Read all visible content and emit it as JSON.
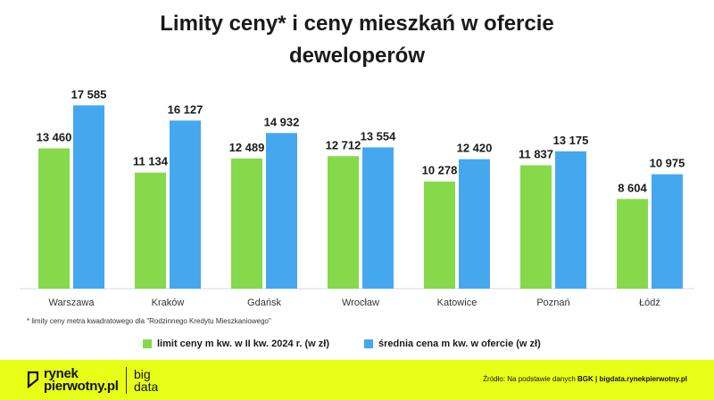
{
  "title_line1": "Limity ceny* i ceny mieszkań w ofercie",
  "title_line2": "deweloperów",
  "footnote": "* limity ceny metra kwadratowego dla \"Rodzinnego Kredytu Mieszkaniowego\"",
  "legend": {
    "series1": "limit ceny m kw. w II kw. 2024 r. (w zł)",
    "series2": "średnia cena m kw. w ofercie (w zł)"
  },
  "footer": {
    "logo_line1": "rynek",
    "logo_line2": "pierwotny.pl",
    "logo2_line1": "big",
    "logo2_line2": "data",
    "source_prefix": "Źródło: Na podstawie danych ",
    "source_bold": "BGK | bigdata.rynekpierwotny.pl",
    "bg_color": "#e8ff17"
  },
  "chart_data": {
    "type": "bar",
    "categories": [
      "Warszawa",
      "Kraków",
      "Gdańsk",
      "Wrocław",
      "Katowice",
      "Poznań",
      "Łódź"
    ],
    "series": [
      {
        "name": "limit ceny m kw. w II kw. 2024 r. (w zł)",
        "color": "#86d94a",
        "values": [
          13460,
          11134,
          12489,
          12712,
          10278,
          11837,
          8604
        ],
        "labels": [
          "13 460",
          "11 134",
          "12 489",
          "12 712",
          "10 278",
          "11 837",
          "8 604"
        ]
      },
      {
        "name": "średnia cena m kw. w ofercie (w zł)",
        "color": "#45a8ee",
        "values": [
          17585,
          16127,
          14932,
          13554,
          12420,
          13175,
          10975
        ],
        "labels": [
          "17 585",
          "16 127",
          "14 932",
          "13 554",
          "12 420",
          "13 175",
          "10 975"
        ]
      }
    ],
    "ylim": [
      0,
      20000
    ],
    "grid": false,
    "legend_position": "bottom"
  }
}
